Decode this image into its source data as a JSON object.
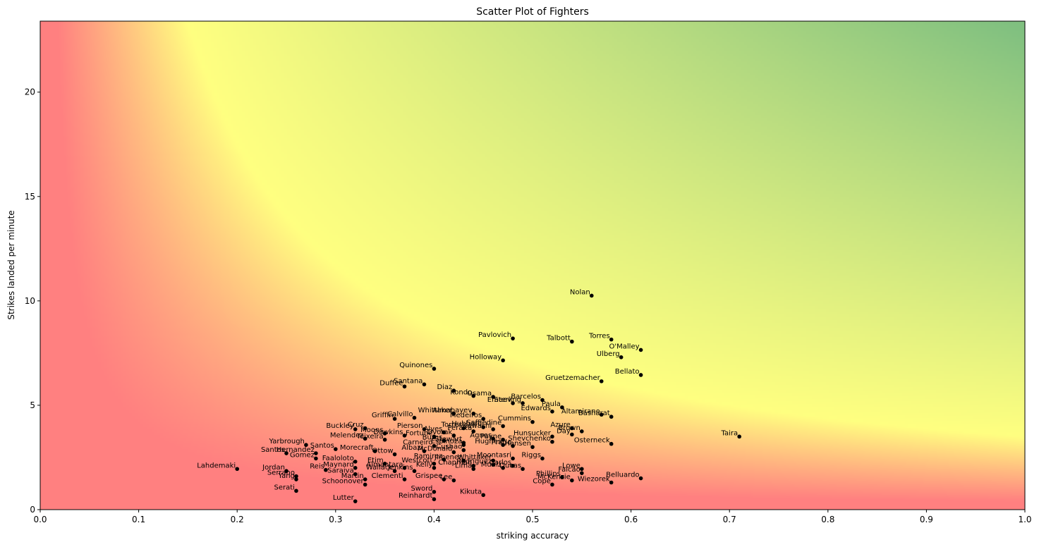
{
  "chart_data": {
    "type": "scatter",
    "title": "Scatter Plot of Fighters",
    "xlabel": "striking accuracy",
    "ylabel": "Strikes landed per minute",
    "xlim": [
      0,
      1.0
    ],
    "ylim": [
      0,
      23.4
    ],
    "xticks": [
      "0.0",
      "0.1",
      "0.2",
      "0.3",
      "0.4",
      "0.5",
      "0.6",
      "0.7",
      "0.8",
      "0.9",
      "1.0"
    ],
    "yticks": [
      "0",
      "5",
      "10",
      "15",
      "20"
    ],
    "background": "red-yellow-green gradient (red near origin, yellow band along a hyperbola, green at top-right)",
    "colors": {
      "low": "#ff8080",
      "mid": "#ffff80",
      "high": "#80c080",
      "marker": "#000000"
    },
    "grid": false,
    "points": [
      {
        "name": "Nolan",
        "x": 0.56,
        "y": 10.25
      },
      {
        "name": "Pavlovich",
        "x": 0.48,
        "y": 8.2
      },
      {
        "name": "Talbott",
        "x": 0.54,
        "y": 8.05
      },
      {
        "name": "Torres",
        "x": 0.58,
        "y": 8.15
      },
      {
        "name": "O'Malley",
        "x": 0.61,
        "y": 7.65
      },
      {
        "name": "Ulberg",
        "x": 0.59,
        "y": 7.3
      },
      {
        "name": "Holloway",
        "x": 0.47,
        "y": 7.15
      },
      {
        "name": "Quinones",
        "x": 0.4,
        "y": 6.75
      },
      {
        "name": "Bellato",
        "x": 0.61,
        "y": 6.45
      },
      {
        "name": "Gruetzemacher",
        "x": 0.57,
        "y": 6.15
      },
      {
        "name": "Santana",
        "x": 0.39,
        "y": 6.0
      },
      {
        "name": "Duffee",
        "x": 0.37,
        "y": 5.9
      },
      {
        "name": "Diaz",
        "x": 0.42,
        "y": 5.7
      },
      {
        "name": "Kondo",
        "x": 0.44,
        "y": 5.45
      },
      {
        "name": "Osama",
        "x": 0.46,
        "y": 5.4
      },
      {
        "name": "Barcelos",
        "x": 0.51,
        "y": 5.25
      },
      {
        "name": "Emeev",
        "x": 0.48,
        "y": 5.1
      },
      {
        "name": "Sterling",
        "x": 0.49,
        "y": 5.1
      },
      {
        "name": "Paula",
        "x": 0.53,
        "y": 4.9
      },
      {
        "name": "Edwards",
        "x": 0.52,
        "y": 4.7
      },
      {
        "name": "Altamirano",
        "x": 0.57,
        "y": 4.55
      },
      {
        "name": "Basharat",
        "x": 0.58,
        "y": 4.45
      },
      {
        "name": "Whittaker",
        "x": 0.42,
        "y": 4.6
      },
      {
        "name": "Almabayev",
        "x": 0.44,
        "y": 4.6
      },
      {
        "name": "Calvillo",
        "x": 0.38,
        "y": 4.4
      },
      {
        "name": "Griffin",
        "x": 0.36,
        "y": 4.35
      },
      {
        "name": "Medeiros",
        "x": 0.45,
        "y": 4.35
      },
      {
        "name": "Cummins",
        "x": 0.5,
        "y": 4.2
      },
      {
        "name": "Buckley",
        "x": 0.32,
        "y": 3.85
      },
      {
        "name": "Cruz",
        "x": 0.33,
        "y": 3.9
      },
      {
        "name": "Moons",
        "x": 0.35,
        "y": 3.65
      },
      {
        "name": "Pierson",
        "x": 0.39,
        "y": 3.85
      },
      {
        "name": "Alves",
        "x": 0.41,
        "y": 3.7
      },
      {
        "name": "Torres",
        "x": 0.43,
        "y": 3.9
      },
      {
        "name": "Hubbard",
        "x": 0.45,
        "y": 3.95
      },
      {
        "name": "Saffiedine",
        "x": 0.47,
        "y": 4.0
      },
      {
        "name": "Peralta",
        "x": 0.44,
        "y": 3.75
      },
      {
        "name": "Kawashi",
        "x": 0.46,
        "y": 3.85
      },
      {
        "name": "Azure",
        "x": 0.54,
        "y": 3.9
      },
      {
        "name": "Brown",
        "x": 0.55,
        "y": 3.75
      },
      {
        "name": "Dawkins",
        "x": 0.37,
        "y": 3.55
      },
      {
        "name": "Melendez",
        "x": 0.33,
        "y": 3.4
      },
      {
        "name": "Teixeira",
        "x": 0.35,
        "y": 3.35
      },
      {
        "name": "Fortune",
        "x": 0.4,
        "y": 3.5
      },
      {
        "name": "Dvorak",
        "x": 0.42,
        "y": 3.55
      },
      {
        "name": "Hunsucker",
        "x": 0.52,
        "y": 3.5
      },
      {
        "name": "Day",
        "x": 0.54,
        "y": 3.6
      },
      {
        "name": "Burns",
        "x": 0.41,
        "y": 3.3
      },
      {
        "name": "Stewart",
        "x": 0.43,
        "y": 3.2
      },
      {
        "name": "Agnes",
        "x": 0.46,
        "y": 3.4
      },
      {
        "name": "Payne",
        "x": 0.47,
        "y": 3.35
      },
      {
        "name": "Shevchenko",
        "x": 0.52,
        "y": 3.25
      },
      {
        "name": "Yarbrough",
        "x": 0.27,
        "y": 3.1
      },
      {
        "name": "Santos",
        "x": 0.3,
        "y": 2.9
      },
      {
        "name": "Carneiro",
        "x": 0.4,
        "y": 3.05
      },
      {
        "name": "Espinoza",
        "x": 0.43,
        "y": 3.1
      },
      {
        "name": "Hughes",
        "x": 0.47,
        "y": 3.1
      },
      {
        "name": "Prado",
        "x": 0.48,
        "y": 3.05
      },
      {
        "name": "Hansen",
        "x": 0.5,
        "y": 3.0
      },
      {
        "name": "Osterneck",
        "x": 0.58,
        "y": 3.15
      },
      {
        "name": "Taira",
        "x": 0.71,
        "y": 3.5
      },
      {
        "name": "Santos",
        "x": 0.25,
        "y": 2.7
      },
      {
        "name": "Hernandez",
        "x": 0.28,
        "y": 2.7
      },
      {
        "name": "Morecraft",
        "x": 0.34,
        "y": 2.8
      },
      {
        "name": "Ottow",
        "x": 0.36,
        "y": 2.65
      },
      {
        "name": "Albazi",
        "x": 0.39,
        "y": 2.8
      },
      {
        "name": "McDonald",
        "x": 0.42,
        "y": 2.75
      },
      {
        "name": "Cushao",
        "x": 0.43,
        "y": 2.85
      },
      {
        "name": "Gomez",
        "x": 0.28,
        "y": 2.45
      },
      {
        "name": "Faaloloto",
        "x": 0.32,
        "y": 2.3
      },
      {
        "name": "Ramirez",
        "x": 0.41,
        "y": 2.4
      },
      {
        "name": "Jimenez",
        "x": 0.43,
        "y": 2.35
      },
      {
        "name": "Whittaker",
        "x": 0.46,
        "y": 2.35
      },
      {
        "name": "Moontasri",
        "x": 0.48,
        "y": 2.45
      },
      {
        "name": "Riggs",
        "x": 0.51,
        "y": 2.45
      },
      {
        "name": "Etim",
        "x": 0.35,
        "y": 2.2
      },
      {
        "name": "Westcott",
        "x": 0.4,
        "y": 2.2
      },
      {
        "name": "Chapman",
        "x": 0.44,
        "y": 2.1
      },
      {
        "name": "Rodriguez",
        "x": 0.46,
        "y": 2.15
      },
      {
        "name": "Carlos",
        "x": 0.48,
        "y": 2.1
      },
      {
        "name": "Maynard",
        "x": 0.32,
        "y": 2.0
      },
      {
        "name": "Almantara",
        "x": 0.37,
        "y": 2.0
      },
      {
        "name": "Kelly",
        "x": 0.4,
        "y": 2.0
      },
      {
        "name": "Lima",
        "x": 0.44,
        "y": 1.95
      },
      {
        "name": "Muniz",
        "x": 0.47,
        "y": 2.0
      },
      {
        "name": "Ducas",
        "x": 0.49,
        "y": 1.95
      },
      {
        "name": "Lowe",
        "x": 0.55,
        "y": 1.95
      },
      {
        "name": "Lahdemaki",
        "x": 0.2,
        "y": 1.95
      },
      {
        "name": "Jordan",
        "x": 0.25,
        "y": 1.85
      },
      {
        "name": "Reis",
        "x": 0.29,
        "y": 1.9
      },
      {
        "name": "Wallace",
        "x": 0.36,
        "y": 1.85
      },
      {
        "name": "Jenkins",
        "x": 0.38,
        "y": 1.85
      },
      {
        "name": "Saraiva",
        "x": 0.32,
        "y": 1.7
      },
      {
        "name": "Falcao",
        "x": 0.55,
        "y": 1.75
      },
      {
        "name": "Serrano",
        "x": 0.26,
        "y": 1.6
      },
      {
        "name": "Yang",
        "x": 0.26,
        "y": 1.45
      },
      {
        "name": "Martin",
        "x": 0.33,
        "y": 1.45
      },
      {
        "name": "Clementi",
        "x": 0.37,
        "y": 1.45
      },
      {
        "name": "Grispee",
        "x": 0.41,
        "y": 1.45
      },
      {
        "name": "Lee",
        "x": 0.42,
        "y": 1.4
      },
      {
        "name": "Phillips",
        "x": 0.53,
        "y": 1.55
      },
      {
        "name": "McKenzie",
        "x": 0.54,
        "y": 1.4
      },
      {
        "name": "Belluardo",
        "x": 0.61,
        "y": 1.5
      },
      {
        "name": "Wiezorek",
        "x": 0.58,
        "y": 1.3
      },
      {
        "name": "Schoonover",
        "x": 0.33,
        "y": 1.2
      },
      {
        "name": "Cope",
        "x": 0.52,
        "y": 1.2
      },
      {
        "name": "Serati",
        "x": 0.26,
        "y": 0.9
      },
      {
        "name": "Sword",
        "x": 0.4,
        "y": 0.85
      },
      {
        "name": "Kikuta",
        "x": 0.45,
        "y": 0.7
      },
      {
        "name": "Reinhardt",
        "x": 0.4,
        "y": 0.5
      },
      {
        "name": "Lutter",
        "x": 0.32,
        "y": 0.4
      }
    ]
  }
}
